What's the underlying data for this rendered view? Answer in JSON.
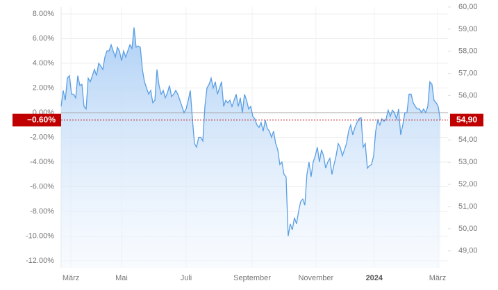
{
  "chart_data": {
    "type": "line",
    "color": "#5a9fe3",
    "values": [
      0.5,
      1.8,
      1.0,
      2.8,
      3.0,
      1.5,
      1.5,
      1.2,
      3.0,
      2.2,
      2.3,
      0.5,
      0.3,
      2.8,
      2.5,
      3.0,
      3.5,
      3.0,
      4.0,
      3.8,
      3.5,
      4.5,
      5.0,
      5.0,
      5.5,
      5.0,
      4.5,
      5.3,
      5.0,
      4.2,
      5.0,
      4.5,
      5.0,
      5.5,
      5.2,
      6.9,
      5.3,
      5.4,
      5.3,
      3.5,
      2.5,
      2.0,
      1.5,
      1.8,
      0.8,
      1.0,
      3.5,
      2.2,
      1.5,
      1.8,
      1.2,
      1.6,
      2.2,
      1.3,
      1.5,
      1.8,
      1.5,
      1.0,
      0.5,
      0.0,
      0.3,
      1.0,
      1.8,
      -0.5,
      -2.5,
      -2.8,
      -2.0,
      -2.0,
      -2.3,
      0.5,
      2.0,
      2.3,
      2.8,
      2.0,
      2.5,
      1.5,
      2.0,
      2.5,
      0.5,
      1.0,
      0.8,
      1.0,
      0.5,
      1.0,
      1.5,
      0.5,
      1.2,
      0.0,
      1.5,
      1.0,
      0.3,
      0.5,
      -0.3,
      -0.5,
      -1.0,
      -1.2,
      -0.8,
      -1.5,
      -0.6,
      -1.3,
      -1.5,
      -2.0,
      -1.5,
      -2.5,
      -3.0,
      -4.2,
      -4.0,
      -5.0,
      -5.2,
      -10.0,
      -9.0,
      -9.5,
      -8.5,
      -9.0,
      -8.0,
      -7.2,
      -7.0,
      -7.5,
      -5.0,
      -4.0,
      -5.2,
      -4.0,
      -3.5,
      -2.8,
      -4.0,
      -3.0,
      -3.5,
      -4.5,
      -4.0,
      -3.7,
      -5.0,
      -4.2,
      -3.5,
      -2.5,
      -2.8,
      -3.5,
      -3.0,
      -2.5,
      -1.5,
      -1.0,
      -1.8,
      -1.2,
      -0.8,
      -0.5,
      -0.4,
      -2.8,
      -2.5,
      -4.5,
      -4.3,
      -4.2,
      -3.5,
      -1.5,
      -0.6,
      -1.0,
      -0.5,
      -0.7,
      -0.5,
      0.2,
      -0.3,
      0.2,
      0.0,
      -0.5,
      0.3,
      -1.8,
      -1.0,
      0.0,
      0.0,
      1.5,
      1.5,
      0.8,
      0.5,
      0.3,
      0.3,
      0.0,
      0.3,
      0.0,
      0.5,
      2.5,
      2.3,
      1.0,
      0.8,
      0.5,
      -0.6
    ],
    "xlim": [
      0,
      185.7
    ],
    "xticks": [
      {
        "value": 4.7,
        "label": "März"
      },
      {
        "value": 29,
        "label": "Mai"
      },
      {
        "value": 60,
        "label": "Juli"
      },
      {
        "value": 91.7,
        "label": "September"
      },
      {
        "value": 122.3,
        "label": "November"
      },
      {
        "value": 150.3,
        "label": "2024"
      },
      {
        "value": 180.7,
        "label": "März"
      }
    ],
    "ylim": [
      -12.56,
      8.56
    ],
    "yticks": [
      {
        "value": 8,
        "label": "8.00%"
      },
      {
        "value": 6,
        "label": "6.00%"
      },
      {
        "value": 4,
        "label": "4.00%"
      },
      {
        "value": 2,
        "label": "2.00%"
      },
      {
        "value": 0,
        "label": "0.00%"
      },
      {
        "value": -2,
        "label": "-2.00%"
      },
      {
        "value": -4,
        "label": "-4.00%"
      },
      {
        "value": -6,
        "label": "-6.00%"
      },
      {
        "value": -8,
        "label": "-8.00%"
      },
      {
        "value": -10,
        "label": "-10.00%"
      },
      {
        "value": -12,
        "label": "-12.00%"
      }
    ],
    "y2lim": [
      48.24,
      60
    ],
    "y2ticks": [
      {
        "value": 60,
        "label": "60,00"
      },
      {
        "value": 59,
        "label": "59,00"
      },
      {
        "value": 58,
        "label": "58,00"
      },
      {
        "value": 57,
        "label": "57,00"
      },
      {
        "value": 56,
        "label": "56,00"
      },
      {
        "value": 55,
        "label": "55,00"
      },
      {
        "value": 54,
        "label": "54,00"
      },
      {
        "value": 53,
        "label": "53,00"
      },
      {
        "value": 52,
        "label": "52,00"
      },
      {
        "value": 51,
        "label": "51,00"
      },
      {
        "value": 50,
        "label": "50,00"
      },
      {
        "value": 49,
        "label": "49,00"
      }
    ],
    "last_value": {
      "value": -0.6,
      "label": "−0.60%"
    },
    "last_price": {
      "value": 54.9,
      "label": "54,90"
    },
    "marker_color": "#c00000",
    "grid": true
  }
}
